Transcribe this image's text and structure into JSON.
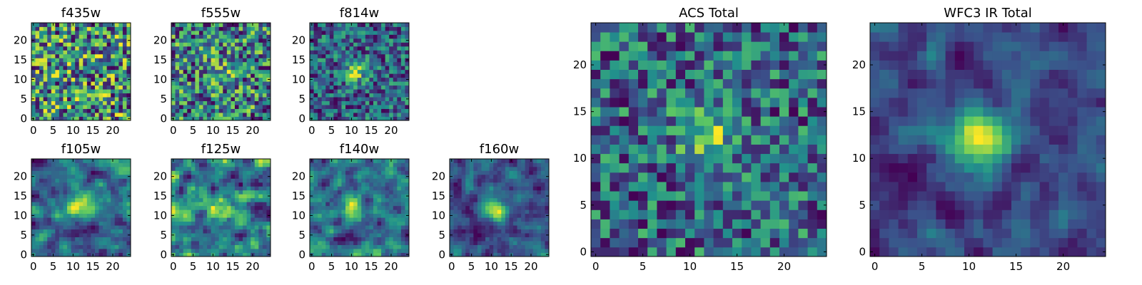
{
  "figure": {
    "colormap": "viridis",
    "colormap_stops": [
      "#440154",
      "#3b528b",
      "#21918c",
      "#5ec962",
      "#fde725"
    ],
    "axes_color": "#000000"
  },
  "chart_data": [
    {
      "id": "f435w",
      "type": "heatmap",
      "title": "f435w",
      "grid_size": 25,
      "xlim": [
        0,
        24
      ],
      "ylim": [
        0,
        24
      ],
      "xticks": [
        0,
        5,
        10,
        15,
        20
      ],
      "yticks": [
        0,
        5,
        10,
        15,
        20
      ],
      "source_peak": [
        12,
        12
      ],
      "source_strength": 0.03,
      "noise": 0.55,
      "smoothness": 0
    },
    {
      "id": "f555w",
      "type": "heatmap",
      "title": "f555w",
      "grid_size": 25,
      "xlim": [
        0,
        24
      ],
      "ylim": [
        0,
        24
      ],
      "xticks": [
        0,
        5,
        10,
        15,
        20
      ],
      "yticks": [
        0,
        5,
        10,
        15,
        20
      ],
      "source_peak": [
        12,
        12
      ],
      "source_strength": 0.12,
      "noise": 0.55,
      "smoothness": 0
    },
    {
      "id": "f814w",
      "type": "heatmap",
      "title": "f814w",
      "grid_size": 25,
      "xlim": [
        0,
        24
      ],
      "ylim": [
        0,
        24
      ],
      "xticks": [
        0,
        5,
        10,
        15,
        20
      ],
      "yticks": [
        0,
        5,
        10,
        15,
        20
      ],
      "source_peak": [
        11,
        12
      ],
      "source_strength": 0.38,
      "noise": 0.5,
      "smoothness": 0
    },
    {
      "id": "f105w",
      "type": "heatmap",
      "title": "f105w",
      "grid_size": 25,
      "xlim": [
        0,
        24
      ],
      "ylim": [
        0,
        24
      ],
      "xticks": [
        0,
        5,
        10,
        15,
        20
      ],
      "yticks": [
        0,
        5,
        10,
        15,
        20
      ],
      "source_peak": [
        11,
        12
      ],
      "source_strength": 0.42,
      "noise": 0.42,
      "smoothness": 1
    },
    {
      "id": "f125w",
      "type": "heatmap",
      "title": "f125w",
      "grid_size": 25,
      "xlim": [
        0,
        24
      ],
      "ylim": [
        0,
        24
      ],
      "xticks": [
        0,
        5,
        10,
        15,
        20
      ],
      "yticks": [
        0,
        5,
        10,
        15,
        20
      ],
      "source_peak": [
        11,
        12
      ],
      "source_strength": 0.2,
      "noise": 0.5,
      "smoothness": 1
    },
    {
      "id": "f140w",
      "type": "heatmap",
      "title": "f140w",
      "grid_size": 25,
      "xlim": [
        0,
        24
      ],
      "ylim": [
        0,
        24
      ],
      "xticks": [
        0,
        5,
        10,
        15,
        20
      ],
      "yticks": [
        0,
        5,
        10,
        15,
        20
      ],
      "source_peak": [
        11,
        12
      ],
      "source_strength": 0.35,
      "noise": 0.45,
      "smoothness": 1
    },
    {
      "id": "f160w",
      "type": "heatmap",
      "title": "f160w",
      "grid_size": 25,
      "xlim": [
        0,
        24
      ],
      "ylim": [
        0,
        24
      ],
      "xticks": [
        0,
        5,
        10,
        15,
        20
      ],
      "yticks": [
        0,
        5,
        10,
        15,
        20
      ],
      "source_peak": [
        11,
        12
      ],
      "source_strength": 0.45,
      "noise": 0.42,
      "smoothness": 1
    },
    {
      "id": "acs-total",
      "type": "heatmap",
      "title": "ACS Total",
      "grid_size": 25,
      "xlim": [
        0,
        24
      ],
      "ylim": [
        0,
        24
      ],
      "xticks": [
        0,
        5,
        10,
        15,
        20
      ],
      "yticks": [
        0,
        5,
        10,
        15,
        20
      ],
      "source_peak": [
        12,
        13
      ],
      "source_strength": 0.35,
      "noise": 0.5,
      "smoothness": 0
    },
    {
      "id": "wfc3-ir-total",
      "type": "heatmap",
      "title": "WFC3 IR Total",
      "grid_size": 25,
      "xlim": [
        0,
        24
      ],
      "ylim": [
        0,
        24
      ],
      "xticks": [
        0,
        5,
        10,
        15,
        20
      ],
      "yticks": [
        0,
        5,
        10,
        15,
        20
      ],
      "source_peak": [
        11,
        12
      ],
      "source_strength": 0.55,
      "noise": 0.32,
      "smoothness": 1
    }
  ]
}
